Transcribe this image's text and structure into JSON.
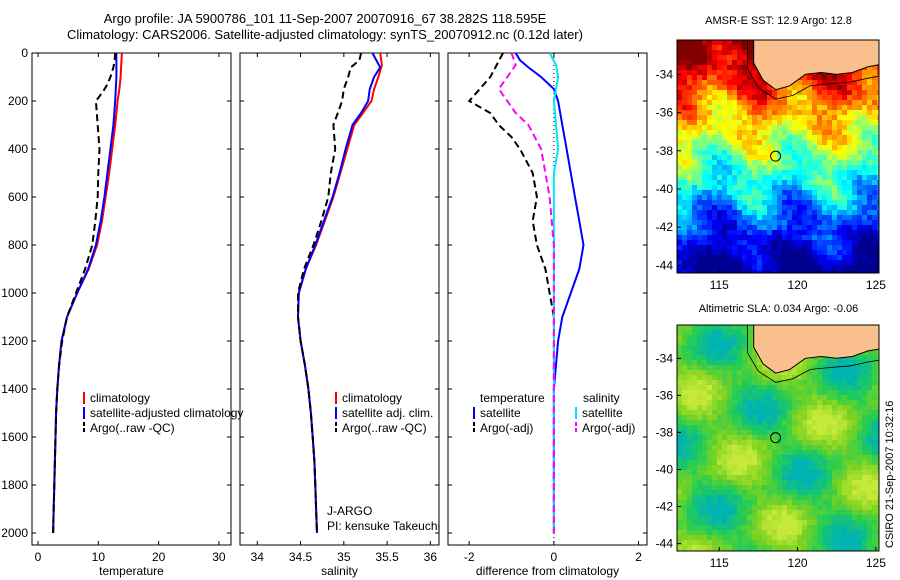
{
  "header": {
    "line1": "Argo profile: JA 5900786_101 11-Sep-2007 20070916_67 38.282S 118.595E",
    "line2": "Climatology: CARS2006. Satellite-adjusted climatology: synTS_20070912.nc (0.12d later)"
  },
  "chart_data": [
    {
      "type": "line",
      "xlabel": "temperature",
      "ylabel": "",
      "xlim": [
        -1,
        32
      ],
      "ylim": [
        2050,
        0
      ],
      "xticks": [
        0,
        10,
        20,
        30
      ],
      "yticks": [
        0,
        200,
        400,
        600,
        800,
        1000,
        1200,
        1400,
        1600,
        1800,
        2000
      ],
      "legend": [
        "climatology",
        "satellite-adjusted climatology",
        "Argo(..raw -QC)"
      ],
      "series": [
        {
          "name": "climatology",
          "color": "#ff0000",
          "dash": "",
          "points": [
            [
              13.9,
              0
            ],
            [
              13.8,
              50
            ],
            [
              13.7,
              100
            ],
            [
              13.5,
              150
            ],
            [
              13.2,
              200
            ],
            [
              12.8,
              300
            ],
            [
              12.3,
              400
            ],
            [
              11.8,
              500
            ],
            [
              11.2,
              600
            ],
            [
              10.6,
              700
            ],
            [
              9.8,
              800
            ],
            [
              8.4,
              900
            ],
            [
              6.5,
              1000
            ],
            [
              4.8,
              1100
            ],
            [
              3.9,
              1200
            ],
            [
              3.5,
              1300
            ],
            [
              3.2,
              1400
            ],
            [
              3.0,
              1500
            ],
            [
              2.9,
              1600
            ],
            [
              2.8,
              1700
            ],
            [
              2.7,
              1800
            ],
            [
              2.6,
              1900
            ],
            [
              2.5,
              2000
            ]
          ]
        },
        {
          "name": "satellite-adjusted climatology",
          "color": "#0000ff",
          "dash": "",
          "points": [
            [
              13.0,
              0
            ],
            [
              13.0,
              50
            ],
            [
              13.0,
              100
            ],
            [
              12.9,
              150
            ],
            [
              12.8,
              200
            ],
            [
              12.5,
              300
            ],
            [
              12.0,
              400
            ],
            [
              11.5,
              500
            ],
            [
              11.0,
              600
            ],
            [
              10.4,
              700
            ],
            [
              9.6,
              800
            ],
            [
              8.3,
              900
            ],
            [
              6.5,
              1000
            ],
            [
              4.8,
              1100
            ],
            [
              3.9,
              1200
            ],
            [
              3.5,
              1300
            ],
            [
              3.2,
              1400
            ],
            [
              3.0,
              1500
            ],
            [
              2.9,
              1600
            ],
            [
              2.8,
              1700
            ],
            [
              2.7,
              1800
            ],
            [
              2.6,
              1900
            ],
            [
              2.5,
              2000
            ]
          ]
        },
        {
          "name": "Argo(..raw -QC)",
          "color": "#000000",
          "dash": "7,4",
          "points": [
            [
              12.8,
              0
            ],
            [
              12.7,
              30
            ],
            [
              12.5,
              60
            ],
            [
              12.0,
              100
            ],
            [
              11.5,
              130
            ],
            [
              10.8,
              160
            ],
            [
              9.6,
              200
            ],
            [
              9.9,
              300
            ],
            [
              10.2,
              400
            ],
            [
              10.0,
              500
            ],
            [
              9.9,
              600
            ],
            [
              9.5,
              700
            ],
            [
              9.0,
              800
            ],
            [
              7.8,
              900
            ],
            [
              6.3,
              1000
            ],
            [
              4.8,
              1100
            ],
            [
              4.0,
              1200
            ],
            [
              3.5,
              1300
            ],
            [
              3.2,
              1400
            ],
            [
              3.0,
              1500
            ],
            [
              2.9,
              1600
            ],
            [
              2.8,
              1700
            ],
            [
              2.7,
              1800
            ],
            [
              2.6,
              1900
            ],
            [
              2.5,
              2000
            ]
          ]
        }
      ]
    },
    {
      "type": "line",
      "xlabel": "salinity",
      "ylabel": "",
      "xlim": [
        33.8,
        36.1
      ],
      "ylim": [
        2050,
        0
      ],
      "xticks": [
        34,
        34.5,
        35,
        35.5,
        36
      ],
      "yticks": [
        0,
        200,
        400,
        600,
        800,
        1000,
        1200,
        1400,
        1600,
        1800,
        2000
      ],
      "legend": [
        "climatology",
        "satellite adj. clim.",
        "Argo(..raw -QC)"
      ],
      "annotation": [
        "J-ARGO",
        "PI: kensuke Takeuchi"
      ],
      "series": [
        {
          "name": "climatology",
          "color": "#ff0000",
          "dash": "",
          "points": [
            [
              35.42,
              0
            ],
            [
              35.44,
              50
            ],
            [
              35.4,
              100
            ],
            [
              35.35,
              150
            ],
            [
              35.32,
              200
            ],
            [
              35.22,
              250
            ],
            [
              35.12,
              300
            ],
            [
              35.04,
              400
            ],
            [
              34.96,
              500
            ],
            [
              34.88,
              600
            ],
            [
              34.78,
              700
            ],
            [
              34.68,
              800
            ],
            [
              34.56,
              900
            ],
            [
              34.48,
              1000
            ],
            [
              34.47,
              1100
            ],
            [
              34.5,
              1200
            ],
            [
              34.55,
              1300
            ],
            [
              34.59,
              1400
            ],
            [
              34.62,
              1500
            ],
            [
              34.64,
              1600
            ],
            [
              34.66,
              1700
            ],
            [
              34.67,
              1800
            ],
            [
              34.68,
              1900
            ],
            [
              34.69,
              2000
            ]
          ]
        },
        {
          "name": "satellite adj. clim.",
          "color": "#0000ff",
          "dash": "",
          "points": [
            [
              35.33,
              0
            ],
            [
              35.42,
              60
            ],
            [
              35.35,
              100
            ],
            [
              35.3,
              150
            ],
            [
              35.28,
              200
            ],
            [
              35.2,
              250
            ],
            [
              35.1,
              300
            ],
            [
              35.02,
              400
            ],
            [
              34.95,
              500
            ],
            [
              34.87,
              600
            ],
            [
              34.77,
              700
            ],
            [
              34.67,
              800
            ],
            [
              34.56,
              900
            ],
            [
              34.48,
              1000
            ],
            [
              34.47,
              1100
            ],
            [
              34.5,
              1200
            ],
            [
              34.55,
              1300
            ],
            [
              34.59,
              1400
            ],
            [
              34.62,
              1500
            ],
            [
              34.64,
              1600
            ],
            [
              34.66,
              1700
            ],
            [
              34.67,
              1800
            ],
            [
              34.68,
              1900
            ],
            [
              34.69,
              2000
            ]
          ]
        },
        {
          "name": "Argo(..raw -QC)",
          "color": "#000000",
          "dash": "7,4",
          "points": [
            [
              35.2,
              0
            ],
            [
              35.18,
              30
            ],
            [
              35.08,
              60
            ],
            [
              35.05,
              100
            ],
            [
              35.0,
              150
            ],
            [
              34.98,
              200
            ],
            [
              34.93,
              250
            ],
            [
              34.88,
              300
            ],
            [
              34.9,
              400
            ],
            [
              34.85,
              500
            ],
            [
              34.82,
              600
            ],
            [
              34.74,
              700
            ],
            [
              34.65,
              800
            ],
            [
              34.54,
              900
            ],
            [
              34.47,
              1000
            ],
            [
              34.47,
              1100
            ],
            [
              34.5,
              1200
            ],
            [
              34.55,
              1300
            ],
            [
              34.59,
              1400
            ],
            [
              34.62,
              1500
            ],
            [
              34.64,
              1600
            ],
            [
              34.66,
              1700
            ],
            [
              34.67,
              1800
            ],
            [
              34.68,
              1900
            ],
            [
              34.69,
              2000
            ]
          ]
        }
      ]
    },
    {
      "type": "line",
      "xlabel": "difference from climatology",
      "ylabel": "",
      "xlim": [
        -2.5,
        2.2
      ],
      "ylim": [
        2050,
        0
      ],
      "xticks": [
        -2,
        0,
        2
      ],
      "yticks": [
        0,
        200,
        400,
        600,
        800,
        1000,
        1200,
        1400,
        1600,
        1800,
        2000
      ],
      "legend_headers": [
        "temperature",
        "salinity"
      ],
      "legend": [
        "satellite",
        "Argo(-adj)",
        "satellite",
        "Argo(-adj)"
      ],
      "series": [
        {
          "name": "satellite",
          "group": "temperature",
          "color": "#0000ff",
          "dash": "",
          "points": [
            [
              -0.9,
              0
            ],
            [
              -0.8,
              30
            ],
            [
              -0.6,
              60
            ],
            [
              -0.3,
              100
            ],
            [
              0.0,
              150
            ],
            [
              0.1,
              200
            ],
            [
              0.2,
              300
            ],
            [
              0.3,
              400
            ],
            [
              0.4,
              500
            ],
            [
              0.5,
              600
            ],
            [
              0.6,
              700
            ],
            [
              0.7,
              800
            ],
            [
              0.6,
              900
            ],
            [
              0.4,
              1000
            ],
            [
              0.2,
              1100
            ],
            [
              0.1,
              1200
            ],
            [
              0.05,
              1300
            ],
            [
              0.0,
              1400
            ],
            [
              0.0,
              2000
            ]
          ]
        },
        {
          "name": "Argo(-adj)",
          "group": "temperature",
          "color": "#000000",
          "dash": "7,4",
          "points": [
            [
              -1.2,
              0
            ],
            [
              -1.5,
              100
            ],
            [
              -2.0,
              200
            ],
            [
              -1.5,
              250
            ],
            [
              -1.3,
              300
            ],
            [
              -1.0,
              350
            ],
            [
              -0.8,
              400
            ],
            [
              -0.5,
              500
            ],
            [
              -0.4,
              600
            ],
            [
              -0.5,
              700
            ],
            [
              -0.4,
              800
            ],
            [
              -0.2,
              900
            ],
            [
              -0.1,
              1000
            ],
            [
              0.0,
              1100
            ],
            [
              0.0,
              2000
            ]
          ]
        },
        {
          "name": "satellite",
          "group": "salinity",
          "color": "#00e5ff",
          "dash": "",
          "points": [
            [
              -0.1,
              0
            ],
            [
              0.05,
              50
            ],
            [
              0.1,
              100
            ],
            [
              0.0,
              200
            ],
            [
              0.05,
              300
            ],
            [
              0.1,
              400
            ],
            [
              0.0,
              500
            ],
            [
              0.0,
              2000
            ]
          ]
        },
        {
          "name": "Argo(-adj)",
          "group": "salinity",
          "color": "#ff00ff",
          "dash": "7,4",
          "points": [
            [
              -1.0,
              0
            ],
            [
              -0.9,
              50
            ],
            [
              -1.1,
              100
            ],
            [
              -1.3,
              150
            ],
            [
              -1.1,
              200
            ],
            [
              -0.9,
              250
            ],
            [
              -0.6,
              300
            ],
            [
              -0.3,
              400
            ],
            [
              -0.2,
              500
            ],
            [
              -0.1,
              600
            ],
            [
              0.0,
              800
            ],
            [
              0.0,
              2000
            ]
          ]
        }
      ]
    },
    {
      "type": "heatmap",
      "title": "AMSR-E SST: 12.9 Argo: 12.8",
      "xlim": [
        112.3,
        125.2
      ],
      "ylim": [
        -44.4,
        -32.2
      ],
      "xticks": [
        115,
        120,
        125
      ],
      "yticks": [
        -34,
        -36,
        -38,
        -40,
        -42,
        -44
      ],
      "argo_position": [
        118.595,
        -38.282
      ]
    },
    {
      "type": "heatmap",
      "title": "Altimetric SLA: 0.034 Argo: -0.06",
      "xlim": [
        112.3,
        125.2
      ],
      "ylim": [
        -44.4,
        -32.2
      ],
      "xticks": [
        115,
        120,
        125
      ],
      "yticks": [
        -34,
        -36,
        -38,
        -40,
        -42,
        -44
      ],
      "argo_position": [
        118.595,
        -38.282
      ]
    }
  ],
  "footer": {
    "side_label": "CSIRO 21-Sep-2007 10:32:16"
  },
  "colors": {
    "land": "#f9c08e",
    "sst_scale": [
      "#00008f",
      "#0000ff",
      "#0080ff",
      "#00ffff",
      "#80ff80",
      "#ffff00",
      "#ff8000",
      "#ff0000",
      "#800000"
    ],
    "sla_scale": [
      "#00b3b3",
      "#22cc55",
      "#7ed321",
      "#c6e93a"
    ]
  }
}
